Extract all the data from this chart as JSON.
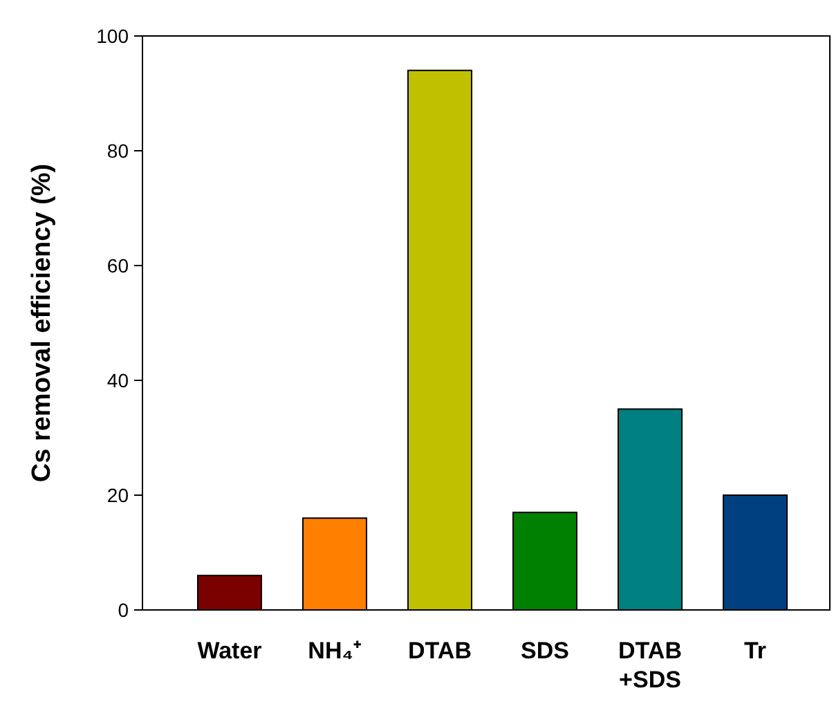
{
  "chart_data": {
    "type": "bar",
    "ylabel": "Cs removal efficiency (%)",
    "categories": [
      "Water",
      "NH₄⁺",
      "DTAB",
      "SDS",
      "DTAB\n+SDS",
      "Tr"
    ],
    "values": [
      6,
      16,
      94,
      17,
      35,
      20
    ],
    "colors": [
      "#7b0000",
      "#ff8000",
      "#c0c000",
      "#008000",
      "#008080",
      "#004080"
    ],
    "ylim": [
      0,
      100
    ],
    "yticks": [
      0,
      20,
      40,
      60,
      80,
      100
    ],
    "grid": false
  }
}
